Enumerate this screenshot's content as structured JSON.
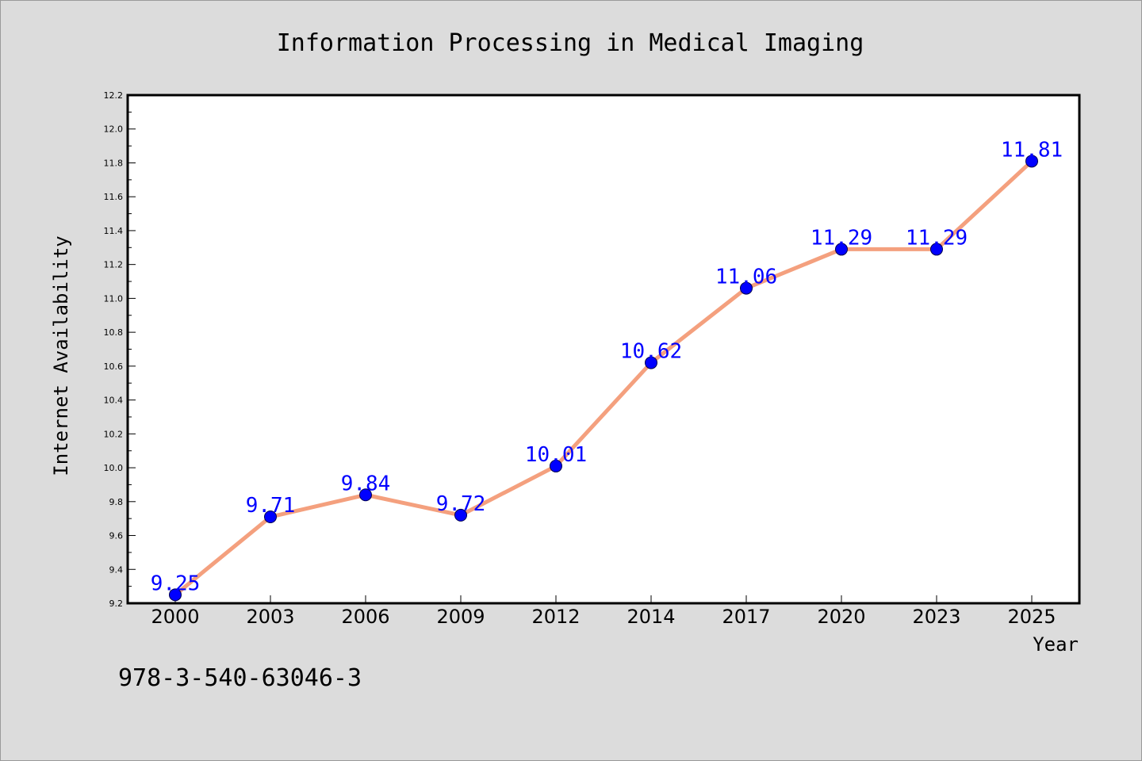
{
  "annotation_text": "978-3-540-63046-3",
  "colors": {
    "background": "#dcdcdc",
    "plot_background": "#ffffff",
    "line": "#f4a07e",
    "marker_fill": "#0000ff",
    "marker_edge": "#00004d",
    "data_label": "#0000ff"
  },
  "chart_data": {
    "type": "line",
    "title": "Information Processing in Medical Imaging",
    "xlabel": "Year",
    "ylabel": "Internet Availability",
    "categories": [
      "2000",
      "2003",
      "2006",
      "2009",
      "2012",
      "2014",
      "2017",
      "2020",
      "2023",
      "2025"
    ],
    "series": [
      {
        "values": [
          9.25,
          9.71,
          9.84,
          9.72,
          10.01,
          10.62,
          11.06,
          11.29,
          11.29,
          11.81
        ],
        "labels": [
          "9.25",
          "9.71",
          "9.84",
          "9.72",
          "10.01",
          "10.62",
          "11.06",
          "11.29",
          "11.29",
          "11.81"
        ]
      }
    ],
    "ylim": [
      9.2,
      12.2
    ],
    "yticks": [
      "9.2",
      "9.4",
      "9.6",
      "9.8",
      "10.0",
      "10.2",
      "10.4",
      "10.6",
      "10.8",
      "11.0",
      "11.2",
      "11.4",
      "11.6",
      "11.8",
      "12.0",
      "12.2"
    ],
    "grid": false,
    "legend": "none"
  }
}
